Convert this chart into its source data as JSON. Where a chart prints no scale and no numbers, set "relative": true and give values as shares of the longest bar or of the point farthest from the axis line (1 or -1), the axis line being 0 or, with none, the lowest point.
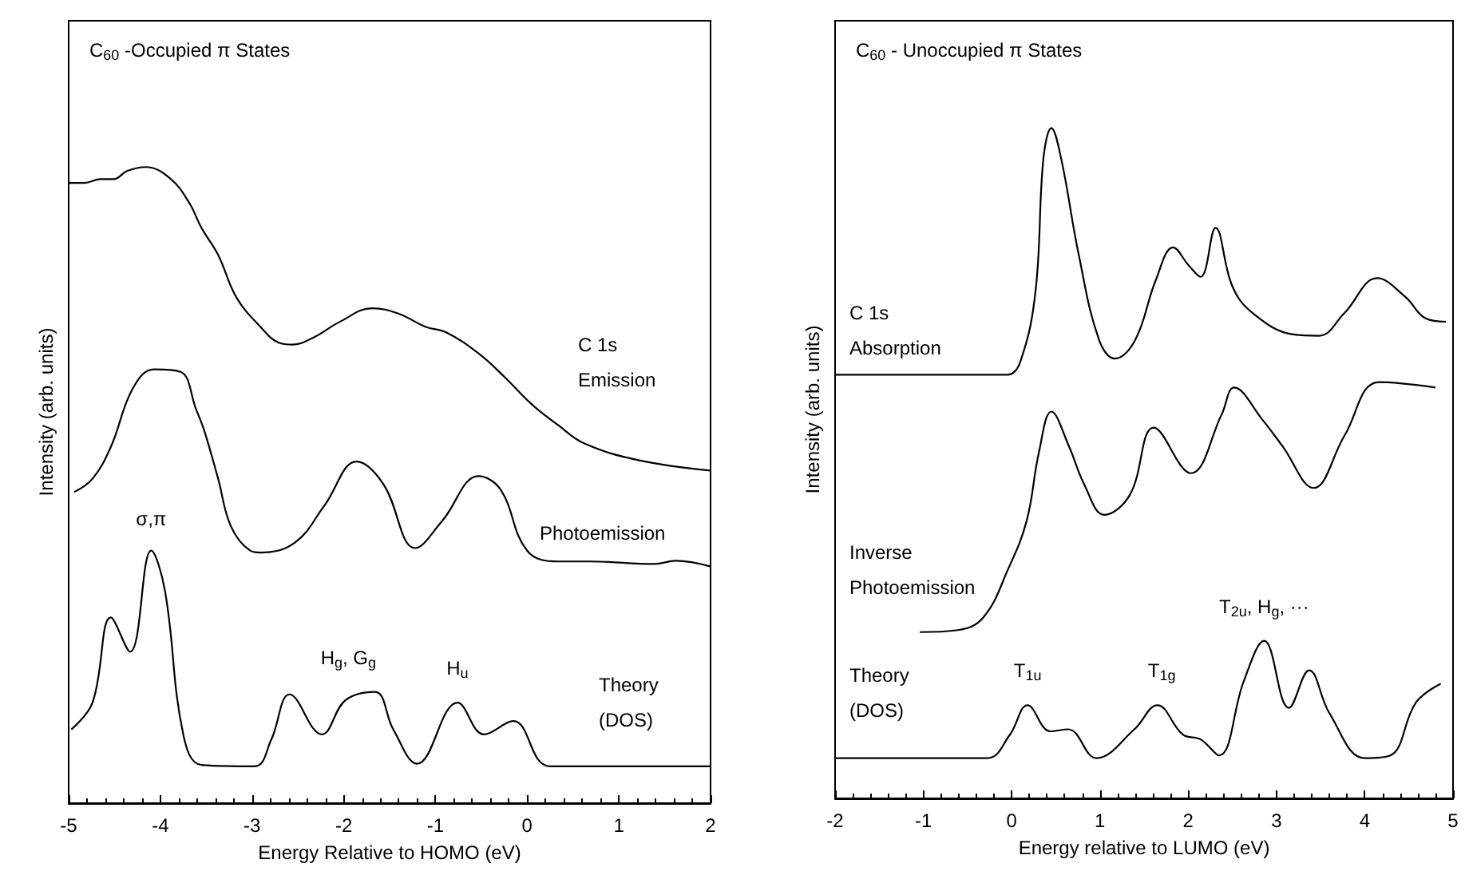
{
  "chart_data": [
    {
      "type": "line",
      "title": "C$_{60}$ -Occupied π States",
      "xlabel": "Energy Relative to HOMO (eV)",
      "ylabel": "Intensity (arb. units)",
      "relative": true,
      "xlim": [
        -5,
        2
      ],
      "xticks": [
        -5,
        -4,
        -3,
        -2,
        -1,
        0,
        1,
        2
      ],
      "marker": "none",
      "line_style": "solid",
      "series": [
        {
          "name": "C 1s Emission",
          "color": "#000000",
          "x": [
            -5,
            -4.83,
            -4.65,
            -4.51,
            -4.36,
            -4.16,
            -3.9,
            -3.69,
            -3.55,
            -3.37,
            -3.17,
            -2.91,
            -2.71,
            -2.56,
            -2.33,
            -2.04,
            -1.69,
            -1.41,
            -1.11,
            -0.88,
            -0.53,
            -0.24,
            0.05,
            0.34,
            0.63,
            1.22,
            2
          ],
          "values": [
            0.975,
            0.975,
            0.981,
            0.981,
            0.994,
            1,
            0.983,
            0.945,
            0.904,
            0.862,
            0.795,
            0.749,
            0.724,
            0.721,
            0.732,
            0.757,
            0.778,
            0.77,
            0.749,
            0.74,
            0.707,
            0.669,
            0.627,
            0.594,
            0.565,
            0.539,
            0.523
          ]
        },
        {
          "name": "Photoemission",
          "color": "#000000",
          "x": [
            -4.94,
            -4.74,
            -4.54,
            -4.3,
            -4.07,
            -3.78,
            -3.61,
            -3.52,
            -3.37,
            -3.23,
            -3.02,
            -2.91,
            -2.53,
            -2.21,
            -1.86,
            -1.57,
            -1.22,
            -0.93,
            -0.53,
            -0.29,
            0,
            0.34,
            0.69,
            1.39,
            1.62,
            2
          ],
          "values": [
            0.489,
            0.51,
            0.56,
            0.652,
            0.682,
            0.678,
            0.619,
            0.585,
            0.51,
            0.435,
            0.397,
            0.394,
            0.41,
            0.468,
            0.537,
            0.502,
            0.401,
            0.443,
            0.514,
            0.493,
            0.397,
            0.38,
            0.38,
            0.376,
            0.381,
            0.372
          ]
        },
        {
          "name": "Theory (DOS)",
          "color": "#000000",
          "x": [
            -4.97,
            -4.74,
            -4.54,
            -4.33,
            -4.1,
            -3.95,
            -3.75,
            -3.55,
            -2.97,
            -2.79,
            -2.59,
            -2.24,
            -1.98,
            -1.66,
            -1.46,
            -1.2,
            -0.76,
            -0.47,
            -0.15,
            0.25,
            2
          ],
          "values": [
            0.116,
            0.158,
            0.292,
            0.238,
            0.397,
            0.334,
            0.108,
            0.06,
            0.058,
            0.1,
            0.171,
            0.108,
            0.162,
            0.175,
            0.116,
            0.062,
            0.158,
            0.108,
            0.129,
            0.058,
            0.058
          ]
        }
      ],
      "annotations": [
        {
          "text": "σ,π",
          "x": -4.1,
          "y": 0.397
        },
        {
          "text": "H$_{g}$, G$_{g}$",
          "x": -1.95,
          "y": 0.175
        },
        {
          "text": "H$_{u}$",
          "x": -0.76,
          "y": 0.158
        }
      ]
    },
    {
      "type": "line",
      "title": "C$_{60}$ - Unoccupied π States",
      "xlabel": "Energy relative to LUMO (eV)",
      "ylabel": "Intensity (arb. units)",
      "relative": true,
      "xlim": [
        -2,
        5
      ],
      "xticks": [
        -2,
        -1,
        0,
        1,
        2,
        3,
        4,
        5
      ],
      "marker": "none",
      "line_style": "solid",
      "series": [
        {
          "name": "C 1s Absorption",
          "color": "#000000",
          "x": [
            -2,
            -0.05,
            0.1,
            0.27,
            0.36,
            0.45,
            0.56,
            0.76,
            0.99,
            1.17,
            1.4,
            1.63,
            1.83,
            2,
            2.14,
            2.31,
            2.5,
            2.73,
            3.19,
            3.48,
            3.77,
            4.14,
            4.46,
            4.69,
            4.92
          ],
          "values": [
            0.632,
            0.632,
            0.652,
            0.756,
            0.955,
            1,
            0.955,
            0.811,
            0.684,
            0.656,
            0.684,
            0.772,
            0.822,
            0.796,
            0.778,
            0.851,
            0.764,
            0.724,
            0.692,
            0.69,
            0.724,
            0.776,
            0.748,
            0.716,
            0.711
          ]
        },
        {
          "name": "Inverse Photoemission",
          "color": "#000000",
          "x": [
            -1.04,
            -0.61,
            -0.32,
            -0.04,
            0.17,
            0.31,
            0.45,
            0.65,
            0.82,
            1.05,
            1.34,
            1.61,
            2.03,
            2.38,
            2.52,
            2.84,
            3.07,
            3.42,
            3.77,
            4.16,
            4.8
          ],
          "values": [
            0.248,
            0.251,
            0.27,
            0.342,
            0.414,
            0.517,
            0.577,
            0.525,
            0.469,
            0.423,
            0.453,
            0.553,
            0.485,
            0.573,
            0.613,
            0.565,
            0.525,
            0.463,
            0.541,
            0.621,
            0.613
          ]
        },
        {
          "name": "Theory (DOS)",
          "color": "#000000",
          "x": [
            -2,
            -0.28,
            -0.02,
            0.18,
            0.44,
            0.64,
            0.96,
            1.39,
            1.65,
            1.94,
            2.14,
            2.35,
            2.63,
            2.86,
            3.14,
            3.37,
            3.6,
            4,
            4.29,
            4.58,
            4.86
          ],
          "values": [
            0.06,
            0.06,
            0.095,
            0.139,
            0.1,
            0.103,
            0.06,
            0.103,
            0.139,
            0.095,
            0.088,
            0.064,
            0.175,
            0.235,
            0.135,
            0.191,
            0.127,
            0.06,
            0.064,
            0.143,
            0.171
          ]
        }
      ],
      "annotations": [
        {
          "text": "T$_{1u}$",
          "x": 0.18,
          "y": 0.139
        },
        {
          "text": "T$_{1g}$",
          "x": 1.7,
          "y": 0.139
        },
        {
          "text": "T$_{2u}$, H$_{g}$, ···",
          "x": 2.86,
          "y": 0.235
        }
      ]
    }
  ]
}
